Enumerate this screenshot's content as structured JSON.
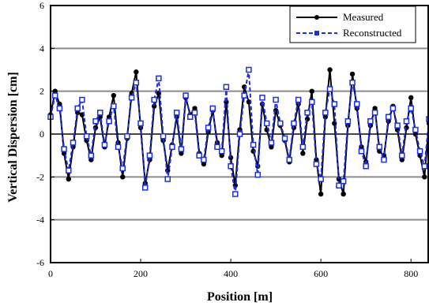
{
  "chart_data": {
    "type": "line",
    "title": "",
    "xlabel": "Position  [m]",
    "ylabel": "Vertical   Dispersion   [cm]",
    "xlim": [
      0,
      840
    ],
    "ylim": [
      -6,
      6
    ],
    "x_ticks": [
      "0",
      "200",
      "400",
      "600",
      "800"
    ],
    "y_ticks": [
      "6",
      "4",
      "2",
      "0",
      "-2",
      "-4",
      "-6"
    ],
    "grid": "horizontal",
    "legend_position": "top-right",
    "legend": [
      "Measured",
      "Reconstructed"
    ],
    "series_colors": [
      "#000000",
      "#1a2ee6"
    ],
    "series": [
      {
        "name": "Measured",
        "x": [
          0,
          10,
          20,
          30,
          40,
          50,
          60,
          70,
          80,
          90,
          100,
          110,
          120,
          130,
          140,
          150,
          160,
          170,
          180,
          190,
          200,
          210,
          220,
          230,
          240,
          250,
          260,
          270,
          280,
          290,
          300,
          310,
          320,
          330,
          340,
          350,
          360,
          370,
          380,
          390,
          400,
          410,
          420,
          430,
          440,
          450,
          460,
          470,
          480,
          490,
          500,
          510,
          520,
          530,
          540,
          550,
          560,
          570,
          580,
          590,
          600,
          610,
          620,
          630,
          640,
          650,
          660,
          670,
          680,
          690,
          700,
          710,
          720,
          730,
          740,
          750,
          760,
          770,
          780,
          790,
          800,
          810,
          820,
          830,
          840
        ],
        "values": [
          0.9,
          2.0,
          1.4,
          -0.9,
          -2.1,
          -0.6,
          1.0,
          0.9,
          -0.3,
          -1.2,
          0.3,
          0.8,
          -0.6,
          0.8,
          1.8,
          -0.4,
          -2.0,
          -0.2,
          1.9,
          2.9,
          0.3,
          -2.3,
          -1.2,
          1.3,
          1.9,
          -0.3,
          -1.7,
          -0.5,
          0.8,
          -0.9,
          1.7,
          0.9,
          1.2,
          -0.9,
          -1.4,
          0.1,
          1.1,
          -0.4,
          -1.0,
          1.5,
          -1.1,
          -2.4,
          0.2,
          2.2,
          1.5,
          -0.8,
          -1.5,
          1.4,
          0.2,
          -0.6,
          1.1,
          0.4,
          -0.3,
          -1.3,
          0.3,
          1.4,
          -0.9,
          0.7,
          2.0,
          -1.2,
          -2.8,
          0.8,
          3.0,
          0.5,
          -2.1,
          -2.8,
          0.4,
          2.8,
          1.2,
          -0.6,
          -1.3,
          0.4,
          1.2,
          -0.8,
          -1.0,
          0.6,
          1.3,
          0.2,
          -1.2,
          0.3,
          1.7,
          0.0,
          -1.0,
          -2.0,
          0.5
        ]
      },
      {
        "name": "Reconstructed",
        "x": [
          0,
          10,
          20,
          30,
          40,
          50,
          60,
          70,
          80,
          90,
          100,
          110,
          120,
          130,
          140,
          150,
          160,
          170,
          180,
          190,
          200,
          210,
          220,
          230,
          240,
          250,
          260,
          270,
          280,
          290,
          300,
          310,
          320,
          330,
          340,
          350,
          360,
          370,
          380,
          390,
          400,
          410,
          420,
          430,
          440,
          450,
          460,
          470,
          480,
          490,
          500,
          510,
          520,
          530,
          540,
          550,
          560,
          570,
          580,
          590,
          600,
          610,
          620,
          630,
          640,
          650,
          660,
          670,
          680,
          690,
          700,
          710,
          720,
          730,
          740,
          750,
          760,
          770,
          780,
          790,
          800,
          810,
          820,
          830,
          840
        ],
        "values": [
          0.8,
          1.8,
          1.2,
          -0.7,
          -1.7,
          -0.4,
          1.2,
          1.6,
          -0.1,
          -1.0,
          0.6,
          1.0,
          -0.5,
          0.6,
          1.3,
          -0.6,
          -1.6,
          -0.1,
          1.7,
          2.4,
          0.5,
          -2.5,
          -1.0,
          1.6,
          2.6,
          -0.1,
          -2.1,
          -0.6,
          1.0,
          -0.7,
          1.8,
          0.8,
          1.0,
          -1.0,
          -1.2,
          0.3,
          1.2,
          -0.6,
          -0.8,
          2.2,
          -1.5,
          -2.8,
          0.0,
          1.8,
          3.0,
          -0.5,
          -1.9,
          1.7,
          0.5,
          -0.4,
          1.6,
          0.5,
          -0.2,
          -1.2,
          0.5,
          1.6,
          -0.6,
          1.0,
          1.5,
          -1.4,
          -2.1,
          1.0,
          2.1,
          1.4,
          -2.4,
          -2.2,
          0.6,
          2.4,
          1.4,
          -0.8,
          -1.5,
          0.6,
          1.0,
          -0.6,
          -1.2,
          0.8,
          1.2,
          0.4,
          -1.0,
          0.6,
          1.2,
          0.2,
          -0.8,
          -1.5,
          0.7
        ]
      }
    ]
  }
}
